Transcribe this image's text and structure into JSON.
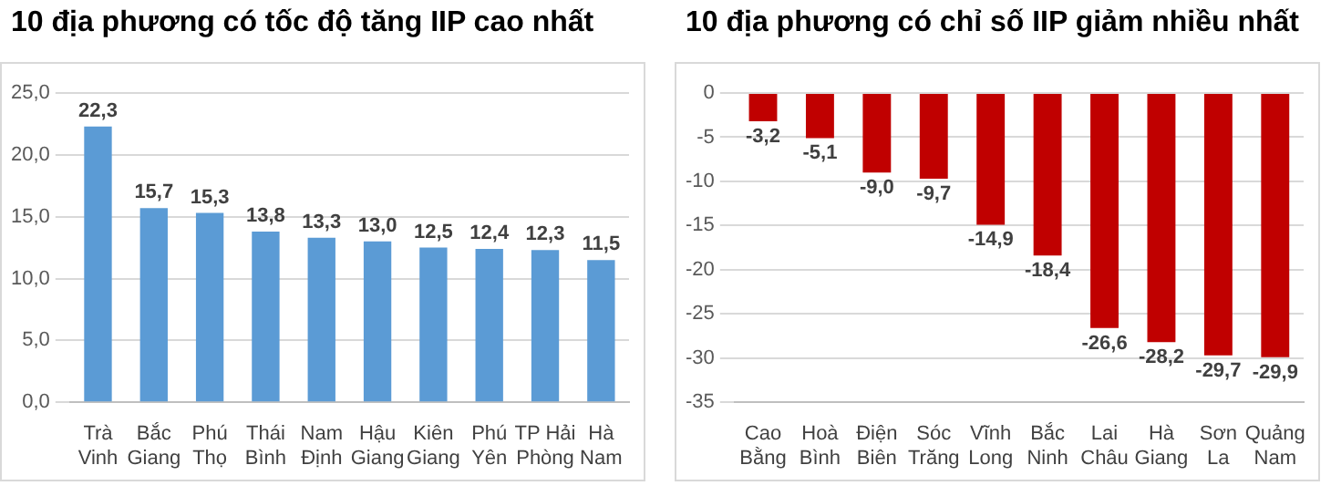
{
  "chart_data": [
    {
      "type": "bar",
      "title": "10 địa phương có tốc độ tăng IIP cao nhất",
      "categories": [
        "Trà Vinh",
        "Bắc Giang",
        "Phú Thọ",
        "Thái Bình",
        "Nam Định",
        "Hậu Giang",
        "Kiên Giang",
        "Phú Yên",
        "TP Hải Phòng",
        "Hà Nam"
      ],
      "values": [
        22.3,
        15.7,
        15.3,
        13.8,
        13.3,
        13.0,
        12.5,
        12.4,
        12.3,
        11.5
      ],
      "value_labels": [
        "22,3",
        "15,7",
        "15,3",
        "13,8",
        "13,3",
        "13,0",
        "12,5",
        "12,4",
        "12,3",
        "11,5"
      ],
      "color": "#5b9bd5",
      "ylim": [
        0,
        25
      ],
      "yticks": [
        {
          "value": 0,
          "label": "0,0"
        },
        {
          "value": 5,
          "label": "5,0"
        },
        {
          "value": 10,
          "label": "10,0"
        },
        {
          "value": 15,
          "label": "15,0"
        },
        {
          "value": 20,
          "label": "20,0"
        },
        {
          "value": 25,
          "label": "25,0"
        }
      ],
      "grid": "y",
      "legend": false
    },
    {
      "type": "bar",
      "title": "10 địa phương có chỉ số IIP giảm nhiều nhất",
      "categories": [
        "Cao Bằng",
        "Hoà Bình",
        "Điện Biên",
        "Sóc Trăng",
        "Vĩnh Long",
        "Bắc Ninh",
        "Lai Châu",
        "Hà Giang",
        "Sơn La",
        "Quảng Nam"
      ],
      "values": [
        -3.2,
        -5.1,
        -9.0,
        -9.7,
        -14.9,
        -18.4,
        -26.6,
        -28.2,
        -29.7,
        -29.9
      ],
      "value_labels": [
        "-3,2",
        "-5,1",
        "-9,0",
        "-9,7",
        "-14,9",
        "-18,4",
        "-26,6",
        "-28,2",
        "-29,7",
        "-29,9"
      ],
      "color": "#c00000",
      "ylim": [
        -35,
        0
      ],
      "yticks": [
        -35,
        -30,
        -25,
        -20,
        -15,
        -10,
        -5,
        0
      ],
      "grid": "y",
      "legend": false
    }
  ]
}
